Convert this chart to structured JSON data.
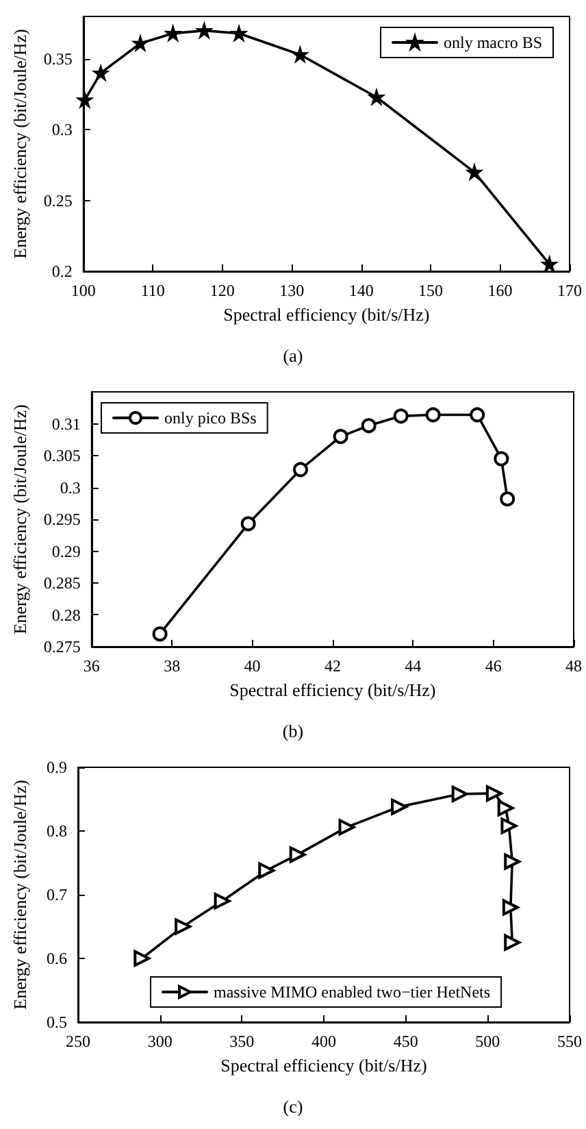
{
  "chart_data": [
    {
      "type": "line",
      "xlabel": "Spectral efficiency (bit/s/Hz)",
      "ylabel": "Energy efficiency (bit/Joule/Hz)",
      "annotations": [
        "(a)"
      ],
      "marker": "star",
      "legend": "top right",
      "grid": false,
      "xlim": [
        100,
        170
      ],
      "xticks": [
        100,
        110,
        120,
        130,
        140,
        150,
        160,
        170
      ],
      "ylim": [
        0.2,
        0.38
      ],
      "yticks": [
        0.2,
        0.25,
        0.3,
        0.35
      ],
      "x": [
        100.2,
        102.5,
        108.2,
        112.9,
        117.4,
        122.4,
        131.2,
        142.2,
        156.3,
        167.1
      ],
      "series": [
        {
          "name": "only macro BS",
          "color": "#000000",
          "values": [
            0.321,
            0.34,
            0.361,
            0.368,
            0.37,
            0.368,
            0.353,
            0.323,
            0.27,
            0.205
          ]
        }
      ]
    },
    {
      "type": "line",
      "xlabel": "Spectral efficiency (bit/s/Hz)",
      "ylabel": "Energy efficiency (bit/Joule/Hz)",
      "annotations": [
        "(b)"
      ],
      "marker": "circle",
      "legend": "top left",
      "grid": false,
      "xlim": [
        36,
        48
      ],
      "xticks": [
        36,
        38,
        40,
        42,
        44,
        46,
        48
      ],
      "ylim": [
        0.275,
        0.315
      ],
      "yticks": [
        0.275,
        0.28,
        0.285,
        0.29,
        0.295,
        0.3,
        0.305,
        0.31
      ],
      "x": [
        37.7,
        39.9,
        41.2,
        42.2,
        42.9,
        43.7,
        44.5,
        45.6,
        46.2,
        46.35
      ],
      "series": [
        {
          "name": "only pico BSs",
          "color": "#000000",
          "values": [
            0.277,
            0.2943,
            0.3028,
            0.308,
            0.3097,
            0.3112,
            0.3114,
            0.3114,
            0.3045,
            0.2982
          ]
        }
      ]
    },
    {
      "type": "line",
      "xlabel": "Spectral efficiency (bit/s/Hz)",
      "ylabel": "Energy efficiency (bit/Joule/Hz)",
      "annotations": [
        "(c)"
      ],
      "marker": "triangle",
      "legend": "bottom",
      "grid": false,
      "xlim": [
        250,
        550
      ],
      "xticks": [
        250,
        300,
        350,
        400,
        450,
        500,
        550
      ],
      "ylim": [
        0.5,
        0.9
      ],
      "yticks": [
        0.5,
        0.6,
        0.7,
        0.8,
        0.9
      ],
      "x": [
        289,
        314,
        338,
        365,
        384,
        414,
        446,
        483,
        504,
        511,
        513,
        515,
        514,
        515
      ],
      "series": [
        {
          "name": "massive MIMO enabled two−tier HetNets",
          "color": "#000000",
          "values": [
            0.6,
            0.65,
            0.69,
            0.738,
            0.763,
            0.806,
            0.838,
            0.858,
            0.859,
            0.836,
            0.808,
            0.752,
            0.68,
            0.625
          ]
        }
      ]
    }
  ]
}
